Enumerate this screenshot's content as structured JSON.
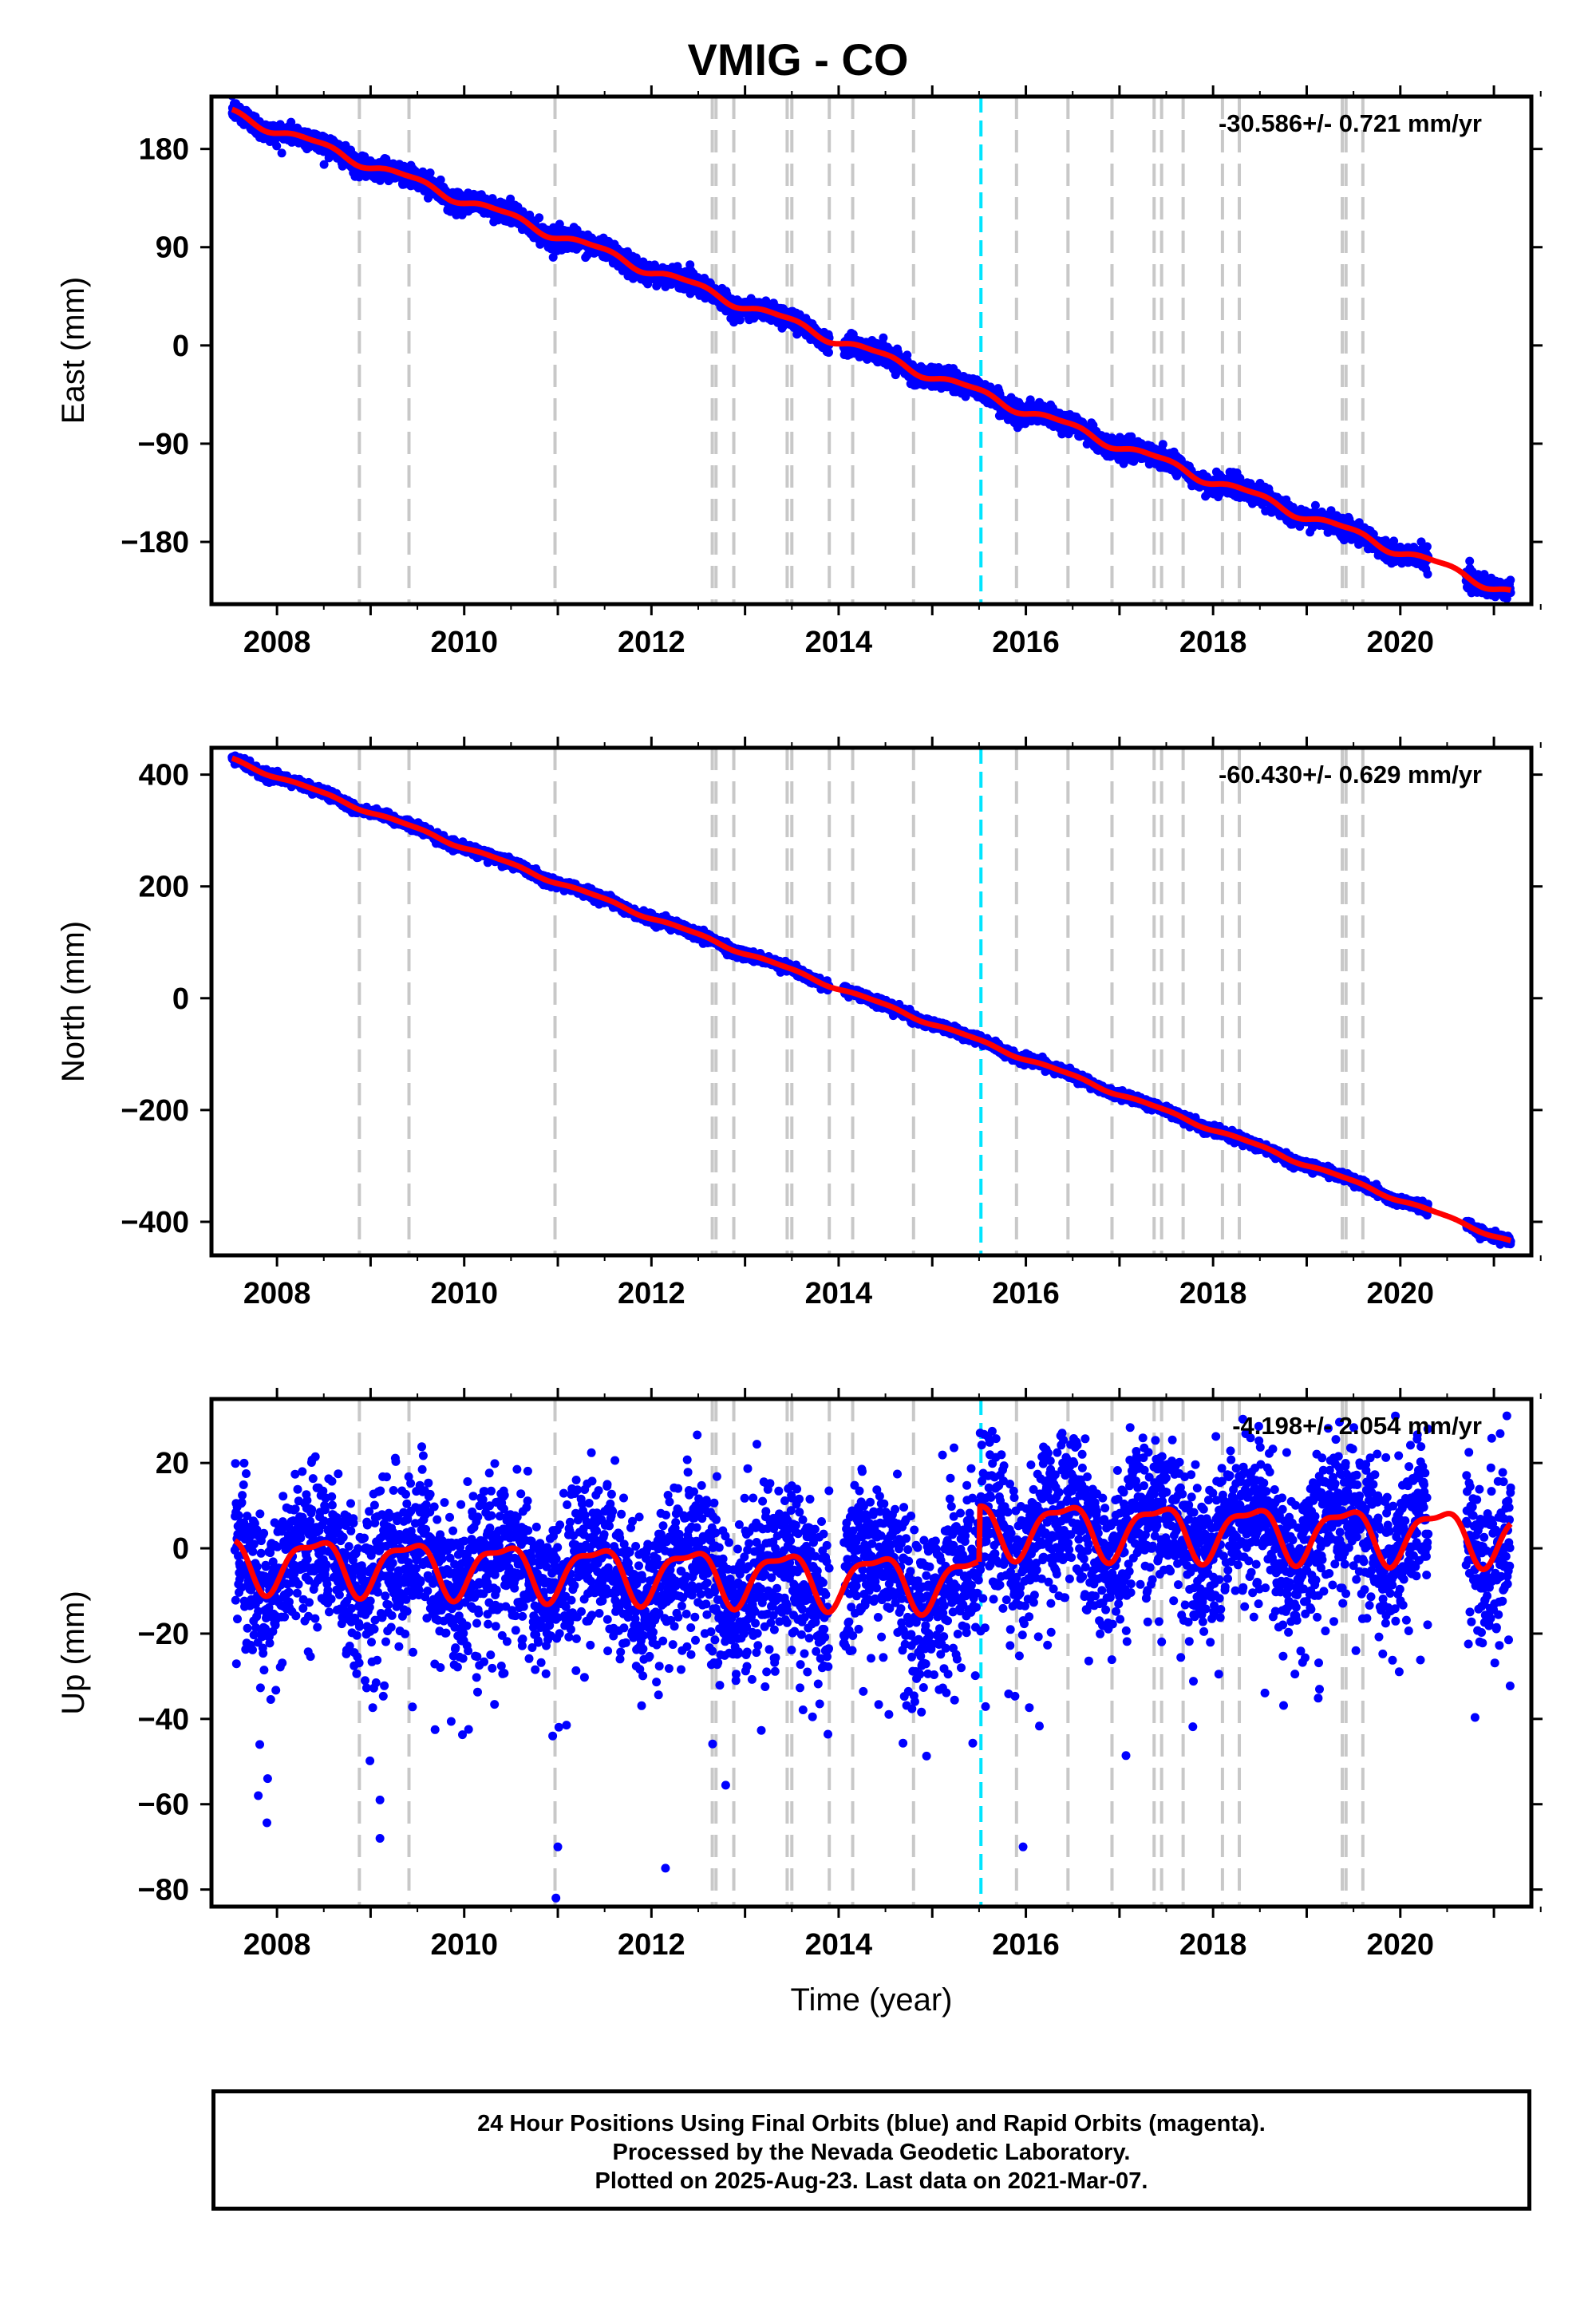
{
  "title": "VMIG - CO",
  "footer": {
    "line1": "24 Hour Positions Using Final Orbits (blue) and Rapid Orbits (magenta).",
    "line2": "Processed by the Nevada Geodetic Laboratory.",
    "line3": "Plotted on 2025-Aug-23. Last data on 2021-Mar-07."
  },
  "colors": {
    "points": "#0000ff",
    "model": "#ff0000",
    "event_lines": "#c8c8c8",
    "antenna_change": "#00e5ff"
  },
  "chart_data": [
    {
      "type": "scatter",
      "ylabel": "East (mm)",
      "xlabel": "",
      "xlim": [
        2007.3,
        2021.4
      ],
      "ylim": [
        -237,
        228
      ],
      "xticks": [
        2008,
        2010,
        2012,
        2014,
        2016,
        2018,
        2020
      ],
      "yticks": [
        180,
        90,
        0,
        -90,
        -180
      ],
      "rate_label": "-30.586+/- 0.721 mm/yr",
      "rate": -30.586,
      "start": {
        "x": 2007.52,
        "y": 213
      },
      "end": {
        "x": 2021.18,
        "y": -226
      },
      "scatter_sigma": 4.5,
      "seasonal_amplitude": 4,
      "steps": [
        {
          "x": 2012.7,
          "dy": -10
        },
        {
          "x": 2015.5,
          "dy": -5
        }
      ],
      "gaps": [
        [
          2013.9,
          2014.05
        ],
        [
          2020.3,
          2020.7
        ]
      ],
      "grid": false
    },
    {
      "type": "scatter",
      "ylabel": "North (mm)",
      "xlabel": "",
      "xlim": [
        2007.3,
        2021.4
      ],
      "ylim": [
        -460,
        448
      ],
      "xticks": [
        2008,
        2010,
        2012,
        2014,
        2016,
        2018,
        2020
      ],
      "yticks": [
        400,
        200,
        0,
        -200,
        -400
      ],
      "rate_label": "-60.430+/- 0.629 mm/yr",
      "rate": -60.43,
      "start": {
        "x": 2007.52,
        "y": 427
      },
      "end": {
        "x": 2021.18,
        "y": -435
      },
      "scatter_sigma": 4,
      "seasonal_amplitude": 3,
      "steps": [
        {
          "x": 2012.7,
          "dy": -15
        },
        {
          "x": 2015.5,
          "dy": -10
        }
      ],
      "gaps": [
        [
          2013.9,
          2014.05
        ],
        [
          2020.3,
          2020.7
        ]
      ],
      "grid": false
    },
    {
      "type": "scatter",
      "ylabel": "Up (mm)",
      "xlabel": "Time (year)",
      "xlim": [
        2007.3,
        2021.4
      ],
      "ylim": [
        -84,
        35
      ],
      "xticks": [
        2008,
        2010,
        2012,
        2014,
        2016,
        2018,
        2020
      ],
      "yticks": [
        20,
        0,
        -20,
        -40,
        -60,
        -80
      ],
      "rate_label": "-4.198+/- 2.054 mm/yr",
      "rate": -4.198,
      "model_segments": [
        {
          "x0": 2007.55,
          "x1": 2015.5,
          "y0": -3,
          "y1": -8
        },
        {
          "x0": 2015.5,
          "x1": 2021.18,
          "y0": 5,
          "y1": 3
        }
      ],
      "seasonal_amplitude": 6,
      "scatter_sigma": 9,
      "outliers": [
        {
          "x": 2010.98,
          "y": -82
        },
        {
          "x": 2012.15,
          "y": -75
        },
        {
          "x": 2011.0,
          "y": -70
        },
        {
          "x": 2009.1,
          "y": -68
        },
        {
          "x": 2015.97,
          "y": -70
        },
        {
          "x": 2007.8,
          "y": -58
        },
        {
          "x": 2009.1,
          "y": -59
        },
        {
          "x": 2007.9,
          "y": -54
        }
      ],
      "gaps": [
        [
          2013.9,
          2014.05
        ],
        [
          2020.3,
          2020.7
        ]
      ],
      "grid": false
    }
  ],
  "event_lines": [
    2008.88,
    2009.41,
    2010.97,
    2012.65,
    2012.69,
    2012.88,
    2013.45,
    2013.5,
    2013.9,
    2014.15,
    2014.8,
    2015.9,
    2016.45,
    2016.92,
    2017.37,
    2017.45,
    2017.68,
    2018.1,
    2018.28,
    2019.38,
    2019.42,
    2019.6
  ],
  "antenna_change": 2015.52
}
